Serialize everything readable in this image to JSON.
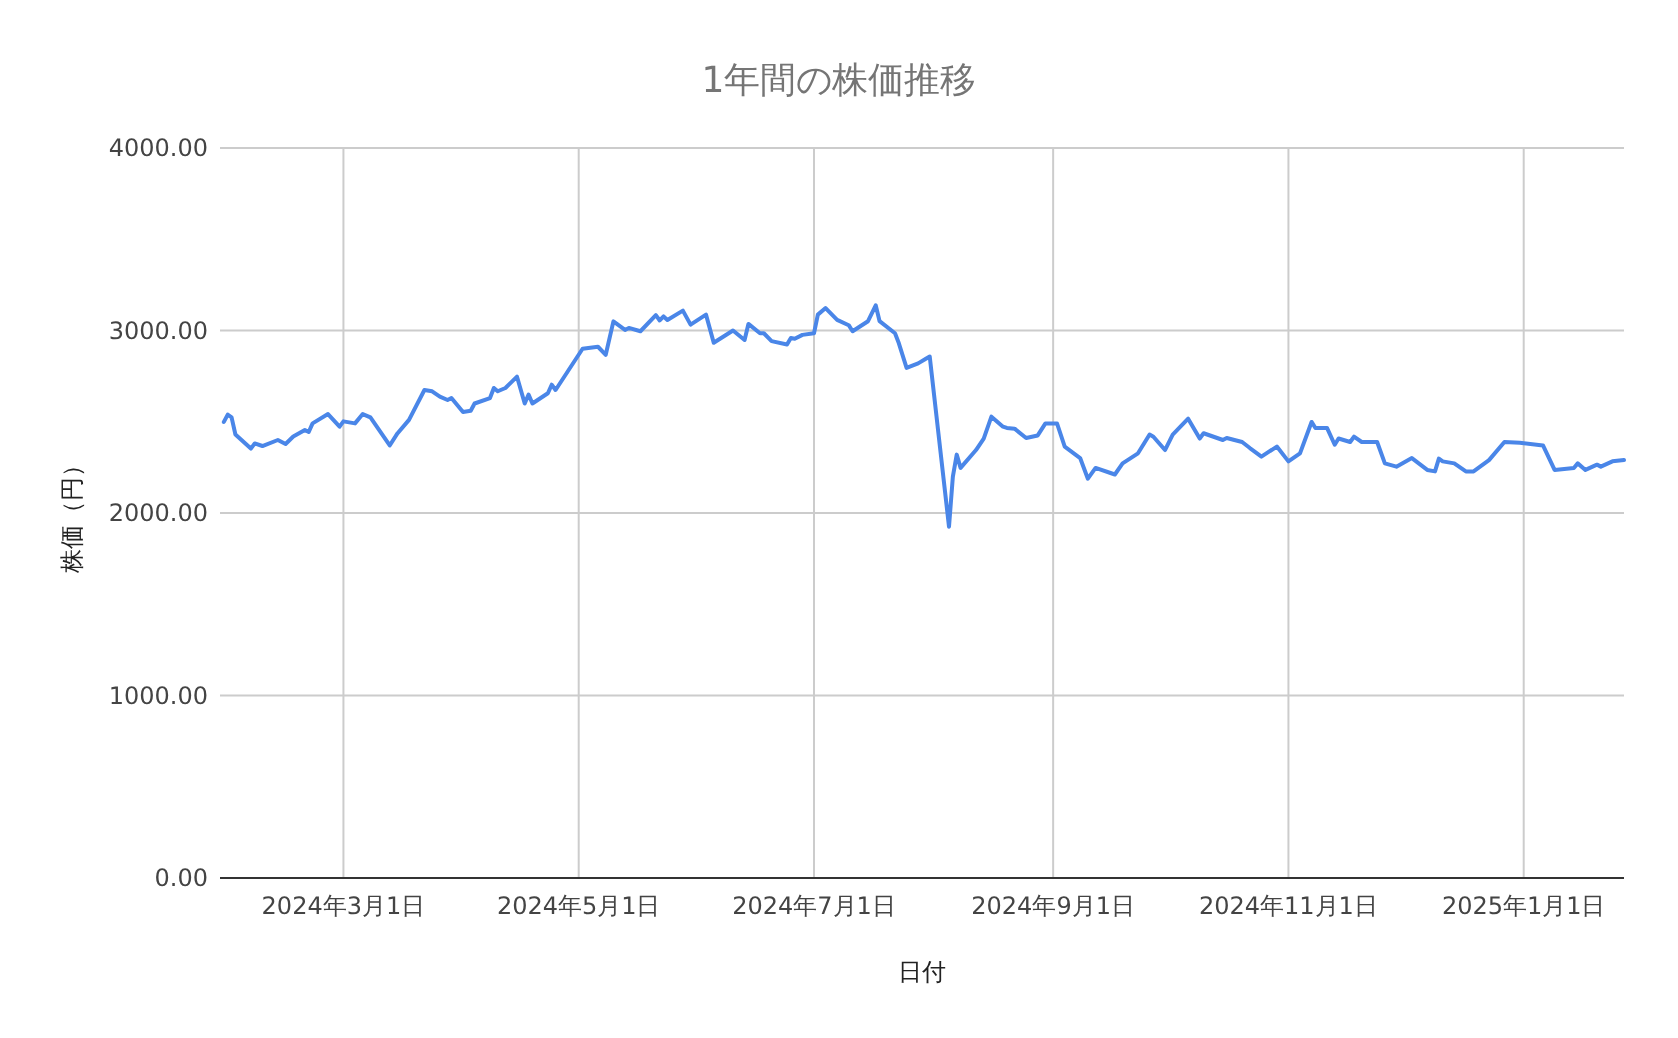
{
  "chart_data": {
    "type": "line",
    "title": "1年間の株価推移",
    "xlabel": "日付",
    "ylabel": "株価（円）",
    "x": [
      "2024-01-30",
      "2024-01-31",
      "2024-02-01",
      "2024-02-02",
      "2024-02-06",
      "2024-02-07",
      "2024-02-09",
      "2024-02-13",
      "2024-02-15",
      "2024-02-17",
      "2024-02-20",
      "2024-02-21",
      "2024-02-22",
      "2024-02-26",
      "2024-02-29",
      "2024-03-01",
      "2024-03-04",
      "2024-03-06",
      "2024-03-08",
      "2024-03-13",
      "2024-03-15",
      "2024-03-18",
      "2024-03-22",
      "2024-03-24",
      "2024-03-26",
      "2024-03-28",
      "2024-03-29",
      "2024-04-01",
      "2024-04-03",
      "2024-04-04",
      "2024-04-08",
      "2024-04-09",
      "2024-04-10",
      "2024-04-12",
      "2024-04-15",
      "2024-04-17",
      "2024-04-18",
      "2024-04-19",
      "2024-04-23",
      "2024-04-24",
      "2024-04-25",
      "2024-05-02",
      "2024-05-06",
      "2024-05-08",
      "2024-05-10",
      "2024-05-13",
      "2024-05-14",
      "2024-05-17",
      "2024-05-21",
      "2024-05-22",
      "2024-05-23",
      "2024-05-24",
      "2024-05-28",
      "2024-05-30",
      "2024-06-03",
      "2024-06-05",
      "2024-06-10",
      "2024-06-13",
      "2024-06-14",
      "2024-06-17",
      "2024-06-18",
      "2024-06-20",
      "2024-06-24",
      "2024-06-25",
      "2024-06-26",
      "2024-06-28",
      "2024-07-01",
      "2024-07-02",
      "2024-07-04",
      "2024-07-07",
      "2024-07-10",
      "2024-07-11",
      "2024-07-15",
      "2024-07-17",
      "2024-07-18",
      "2024-07-22",
      "2024-07-23",
      "2024-07-25",
      "2024-07-28",
      "2024-07-30",
      "2024-07-31",
      "2024-08-05",
      "2024-08-06",
      "2024-08-07",
      "2024-08-08",
      "2024-08-12",
      "2024-08-14",
      "2024-08-16",
      "2024-08-19",
      "2024-08-20",
      "2024-08-22",
      "2024-08-25",
      "2024-08-28",
      "2024-08-30",
      "2024-09-02",
      "2024-09-04",
      "2024-09-08",
      "2024-09-10",
      "2024-09-12",
      "2024-09-17",
      "2024-09-19",
      "2024-09-23",
      "2024-09-26",
      "2024-09-27",
      "2024-09-30",
      "2024-10-02",
      "2024-10-06",
      "2024-10-09",
      "2024-10-10",
      "2024-10-15",
      "2024-10-16",
      "2024-10-20",
      "2024-10-22",
      "2024-10-25",
      "2024-10-29",
      "2024-11-01",
      "2024-11-04",
      "2024-11-07",
      "2024-11-08",
      "2024-11-11",
      "2024-11-13",
      "2024-11-14",
      "2024-11-17",
      "2024-11-18",
      "2024-11-20",
      "2024-11-24",
      "2024-11-26",
      "2024-11-29",
      "2024-12-03",
      "2024-12-07",
      "2024-12-09",
      "2024-12-10",
      "2024-12-11",
      "2024-12-14",
      "2024-12-17",
      "2024-12-19",
      "2024-12-23",
      "2024-12-27",
      "2024-12-31",
      "2025-01-06",
      "2025-01-09",
      "2025-01-14",
      "2025-01-15",
      "2025-01-17",
      "2025-01-20",
      "2025-01-21",
      "2025-01-24",
      "2025-01-27"
    ],
    "series": [
      {
        "color": "#4a86e8",
        "values": [
          2499,
          2539,
          2524,
          2430,
          2353,
          2381,
          2367,
          2400,
          2378,
          2419,
          2455,
          2444,
          2491,
          2542,
          2473,
          2502,
          2491,
          2542,
          2524,
          2370,
          2436,
          2510,
          2674,
          2667,
          2638,
          2619,
          2630,
          2553,
          2560,
          2600,
          2630,
          2685,
          2667,
          2685,
          2747,
          2600,
          2649,
          2600,
          2656,
          2703,
          2674,
          2900,
          2911,
          2867,
          3050,
          3003,
          3014,
          2996,
          3084,
          3055,
          3077,
          3058,
          3109,
          3032,
          3087,
          2933,
          3000,
          2948,
          3036,
          2985,
          2985,
          2942,
          2923,
          2959,
          2955,
          2976,
          2985,
          3087,
          3123,
          3058,
          3029,
          2996,
          3051,
          3138,
          3051,
          2985,
          2930,
          2795,
          2820,
          2845,
          2857,
          1925,
          2199,
          2320,
          2247,
          2345,
          2408,
          2528,
          2473,
          2466,
          2462,
          2411,
          2425,
          2491,
          2491,
          2364,
          2301,
          2188,
          2247,
          2211,
          2272,
          2327,
          2430,
          2418,
          2345,
          2430,
          2517,
          2408,
          2437,
          2400,
          2411,
          2389,
          2356,
          2309,
          2364,
          2283,
          2327,
          2499,
          2466,
          2466,
          2374,
          2408,
          2389,
          2418,
          2389,
          2389,
          2272,
          2254,
          2301,
          2236,
          2228,
          2298,
          2283,
          2272,
          2228,
          2228,
          2290,
          2389,
          2385,
          2370,
          2236,
          2247,
          2272,
          2236,
          2265,
          2254,
          2283,
          2290
        ]
      }
    ],
    "xlim": [
      "2024-01-29",
      "2025-01-27"
    ],
    "xticks": [
      {
        "value": "2024-03-01",
        "label": "2024年3月1日"
      },
      {
        "value": "2024-05-01",
        "label": "2024年5月1日"
      },
      {
        "value": "2024-07-01",
        "label": "2024年7月1日"
      },
      {
        "value": "2024-09-01",
        "label": "2024年9月1日"
      },
      {
        "value": "2024-11-01",
        "label": "2024年11月1日"
      },
      {
        "value": "2025-01-01",
        "label": "2025年1月1日"
      }
    ],
    "ylim": [
      0,
      4000
    ],
    "yticks": [
      {
        "value": 0,
        "label": "0.00"
      },
      {
        "value": 1000,
        "label": "1000.00"
      },
      {
        "value": 2000,
        "label": "2000.00"
      },
      {
        "value": 3000,
        "label": "3000.00"
      },
      {
        "value": 4000,
        "label": "4000.00"
      }
    ],
    "grid": true
  }
}
